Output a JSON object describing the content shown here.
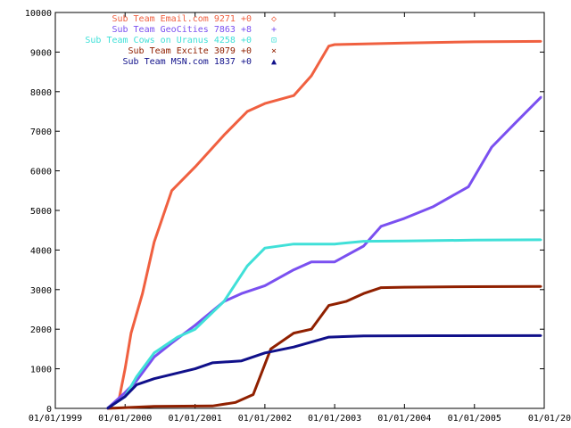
{
  "chart_data": {
    "type": "line",
    "title": "",
    "xlabel": "",
    "ylabel": "",
    "ylim": [
      0,
      10000
    ],
    "xlim": [
      "1999-01-01",
      "2006-01-01"
    ],
    "grid": false,
    "legend_placement": "top-left (inside plot, right-aligned text)",
    "y_ticks": [
      0,
      1000,
      2000,
      3000,
      4000,
      5000,
      6000,
      7000,
      8000,
      9000,
      10000
    ],
    "x_ticks": [
      {
        "date": "1999-01-01",
        "label": "01/01/1999"
      },
      {
        "date": "2000-01-01",
        "label": "01/01/2000"
      },
      {
        "date": "2001-01-01",
        "label": "01/01/2001"
      },
      {
        "date": "2002-01-01",
        "label": "01/01/2002"
      },
      {
        "date": "2003-01-01",
        "label": "01/01/2003"
      },
      {
        "date": "2004-01-01",
        "label": "01/01/2004"
      },
      {
        "date": "2005-01-01",
        "label": "01/01/2005"
      },
      {
        "date": "2006-01-01",
        "label": "01/01/20"
      }
    ],
    "series": [
      {
        "name": "Sub Team Email.com 9271 +0",
        "color": "#f06040",
        "marker": "◇",
        "points": [
          [
            "1999-10-01",
            0
          ],
          [
            "1999-12-01",
            250
          ],
          [
            "2000-01-01",
            1000
          ],
          [
            "2000-02-01",
            1900
          ],
          [
            "2000-04-01",
            2900
          ],
          [
            "2000-06-01",
            4200
          ],
          [
            "2000-09-01",
            5500
          ],
          [
            "2001-01-01",
            6100
          ],
          [
            "2001-06-01",
            6900
          ],
          [
            "2001-10-01",
            7500
          ],
          [
            "2002-01-01",
            7700
          ],
          [
            "2002-06-01",
            7900
          ],
          [
            "2002-09-01",
            8400
          ],
          [
            "2002-12-01",
            9150
          ],
          [
            "2003-01-01",
            9190
          ],
          [
            "2004-01-01",
            9230
          ],
          [
            "2005-01-01",
            9260
          ],
          [
            "2005-12-15",
            9271
          ]
        ]
      },
      {
        "name": "Sub Team GeoCities 7863 +8",
        "color": "#7a50f0",
        "marker": "+",
        "points": [
          [
            "1999-10-01",
            0
          ],
          [
            "2000-01-01",
            400
          ],
          [
            "2000-03-01",
            700
          ],
          [
            "2000-06-01",
            1300
          ],
          [
            "2000-09-01",
            1650
          ],
          [
            "2001-01-01",
            2100
          ],
          [
            "2001-06-01",
            2700
          ],
          [
            "2001-09-01",
            2900
          ],
          [
            "2002-01-01",
            3100
          ],
          [
            "2002-06-01",
            3500
          ],
          [
            "2002-09-01",
            3700
          ],
          [
            "2003-01-01",
            3700
          ],
          [
            "2003-06-01",
            4100
          ],
          [
            "2003-09-01",
            4600
          ],
          [
            "2004-01-01",
            4800
          ],
          [
            "2004-06-01",
            5100
          ],
          [
            "2004-12-01",
            5600
          ],
          [
            "2005-04-01",
            6600
          ],
          [
            "2005-08-01",
            7200
          ],
          [
            "2005-12-15",
            7863
          ]
        ]
      },
      {
        "name": "Sub Team Cows on Uranus 4258 +0",
        "color": "#40e0d8",
        "marker": "⊡",
        "points": [
          [
            "1999-10-01",
            0
          ],
          [
            "2000-01-01",
            300
          ],
          [
            "2000-03-01",
            800
          ],
          [
            "2000-06-01",
            1400
          ],
          [
            "2000-10-01",
            1800
          ],
          [
            "2001-01-01",
            2000
          ],
          [
            "2001-06-01",
            2700
          ],
          [
            "2001-10-01",
            3600
          ],
          [
            "2002-01-01",
            4050
          ],
          [
            "2002-06-01",
            4150
          ],
          [
            "2003-01-01",
            4150
          ],
          [
            "2003-06-01",
            4220
          ],
          [
            "2004-01-01",
            4230
          ],
          [
            "2005-01-01",
            4250
          ],
          [
            "2005-12-15",
            4258
          ]
        ]
      },
      {
        "name": "Sub Team Excite 3079 +0",
        "color": "#902000",
        "marker": "×",
        "points": [
          [
            "1999-10-01",
            0
          ],
          [
            "2000-06-01",
            50
          ],
          [
            "2001-04-01",
            60
          ],
          [
            "2001-08-01",
            150
          ],
          [
            "2001-11-01",
            350
          ],
          [
            "2002-02-01",
            1500
          ],
          [
            "2002-06-01",
            1900
          ],
          [
            "2002-09-01",
            2000
          ],
          [
            "2002-12-01",
            2600
          ],
          [
            "2003-03-01",
            2700
          ],
          [
            "2003-06-01",
            2900
          ],
          [
            "2003-09-01",
            3050
          ],
          [
            "2004-01-01",
            3060
          ],
          [
            "2005-01-01",
            3075
          ],
          [
            "2005-12-15",
            3079
          ]
        ]
      },
      {
        "name": "Sub Team MSN.com 1837 +0",
        "color": "#10108a",
        "marker": "▲",
        "points": [
          [
            "1999-10-01",
            0
          ],
          [
            "2000-01-01",
            300
          ],
          [
            "2000-03-01",
            600
          ],
          [
            "2000-06-01",
            750
          ],
          [
            "2001-01-01",
            1000
          ],
          [
            "2001-04-01",
            1150
          ],
          [
            "2001-09-01",
            1200
          ],
          [
            "2002-01-01",
            1400
          ],
          [
            "2002-06-01",
            1550
          ],
          [
            "2002-12-01",
            1800
          ],
          [
            "2003-06-01",
            1830
          ],
          [
            "2004-06-01",
            1835
          ],
          [
            "2005-12-15",
            1837
          ]
        ]
      }
    ]
  }
}
